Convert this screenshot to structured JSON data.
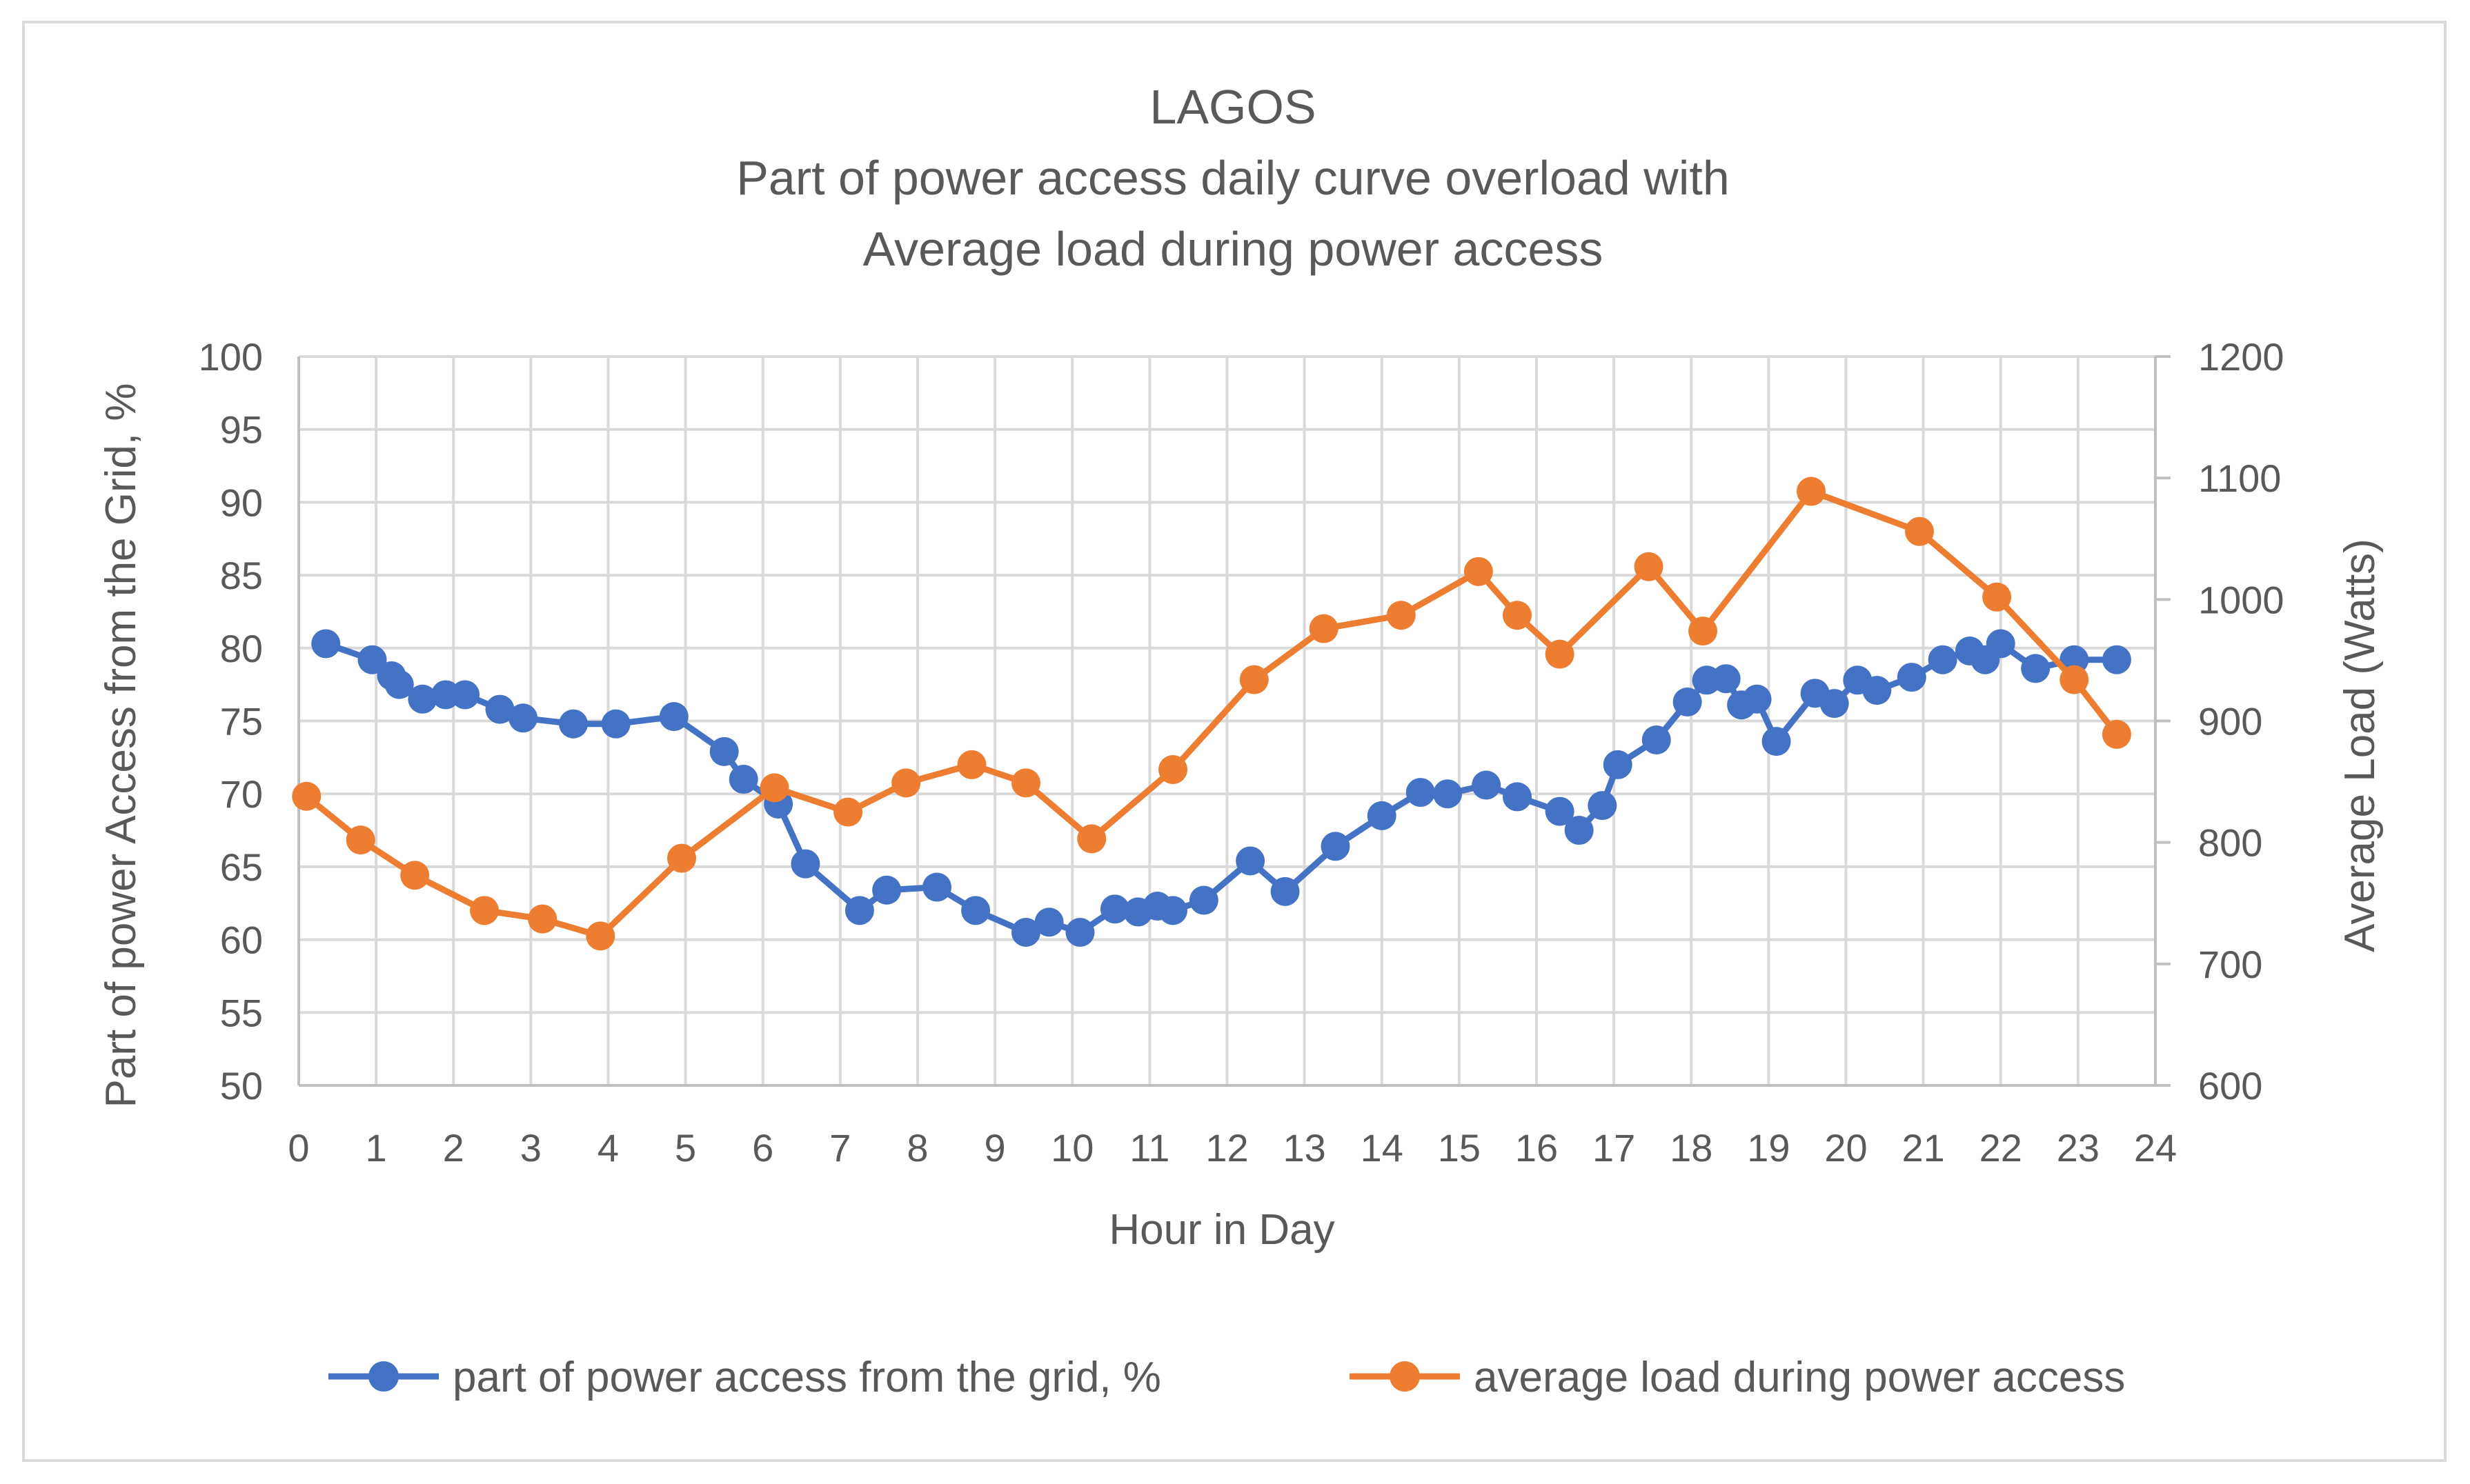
{
  "chart_data": {
    "type": "line",
    "title": "LAGOS",
    "subtitle_lines": [
      "Part of power access daily curve overload with",
      "Average load during power access"
    ],
    "xlabel": "Hour in Day",
    "ylabel": "Part of power Access from the Grid, %",
    "y2label": "Average Load (Watts)",
    "xlim": [
      0,
      24
    ],
    "ylim": [
      50,
      100
    ],
    "y2lim": [
      600,
      1200
    ],
    "x_ticks": [
      0,
      1,
      2,
      3,
      4,
      5,
      6,
      7,
      8,
      9,
      10,
      11,
      12,
      13,
      14,
      15,
      16,
      17,
      18,
      19,
      20,
      21,
      22,
      23,
      24
    ],
    "y_ticks": [
      50,
      55,
      60,
      65,
      70,
      75,
      80,
      85,
      90,
      95,
      100
    ],
    "y2_ticks": [
      600,
      700,
      800,
      900,
      1000,
      1100,
      1200
    ],
    "grid": true,
    "legend_position": "bottom",
    "series": [
      {
        "name": "part of power access from the grid, %",
        "axis": "left",
        "color": "#4472c4",
        "x": [
          0.35,
          0.95,
          1.2,
          1.3,
          1.6,
          1.9,
          2.15,
          2.6,
          2.9,
          3.55,
          4.1,
          4.85,
          5.5,
          5.75,
          6.2,
          6.55,
          7.25,
          7.6,
          8.25,
          8.75,
          9.4,
          9.7,
          10.1,
          10.55,
          10.85,
          11.1,
          11.3,
          11.7,
          12.3,
          12.75,
          13.4,
          14.0,
          14.5,
          14.85,
          15.35,
          15.75,
          16.3,
          16.55,
          16.85,
          17.05,
          17.55,
          17.95,
          18.2,
          18.45,
          18.65,
          18.85,
          19.1,
          19.6,
          19.85,
          20.15,
          20.4,
          20.85,
          21.25,
          21.6,
          21.8,
          22.0,
          22.45,
          22.95,
          23.5
        ],
        "values": [
          80.3,
          79.2,
          78.1,
          77.5,
          76.5,
          76.8,
          76.8,
          75.8,
          75.2,
          74.8,
          74.8,
          75.3,
          72.9,
          71.0,
          69.3,
          65.2,
          62.0,
          63.4,
          63.6,
          62.0,
          60.5,
          61.2,
          60.5,
          62.1,
          61.9,
          62.3,
          62.0,
          62.7,
          65.4,
          63.3,
          66.4,
          68.5,
          70.1,
          70.0,
          70.6,
          69.8,
          68.8,
          67.5,
          69.2,
          72.0,
          73.7,
          76.3,
          77.8,
          77.9,
          76.1,
          76.5,
          73.6,
          76.9,
          76.2,
          77.8,
          77.1,
          78.0,
          79.2,
          79.8,
          79.2,
          80.3,
          78.6,
          79.2,
          79.2
        ]
      },
      {
        "name": "average load during power access",
        "axis": "right",
        "color": "#ed7d31",
        "x": [
          0.1,
          0.8,
          1.5,
          2.4,
          3.15,
          3.9,
          4.95,
          6.15,
          7.1,
          7.85,
          8.7,
          9.4,
          10.25,
          11.3,
          12.35,
          13.25,
          14.25,
          15.25,
          15.75,
          16.3,
          17.45,
          18.15,
          19.55,
          20.95,
          21.95,
          22.95,
          23.5
        ],
        "values": [
          838,
          802,
          773,
          744,
          737,
          723,
          787,
          845,
          825,
          849,
          864,
          849,
          803,
          860,
          934,
          976,
          987,
          1023,
          987,
          955,
          1027,
          974,
          1089,
          1056,
          1002,
          934,
          889
        ]
      }
    ]
  }
}
